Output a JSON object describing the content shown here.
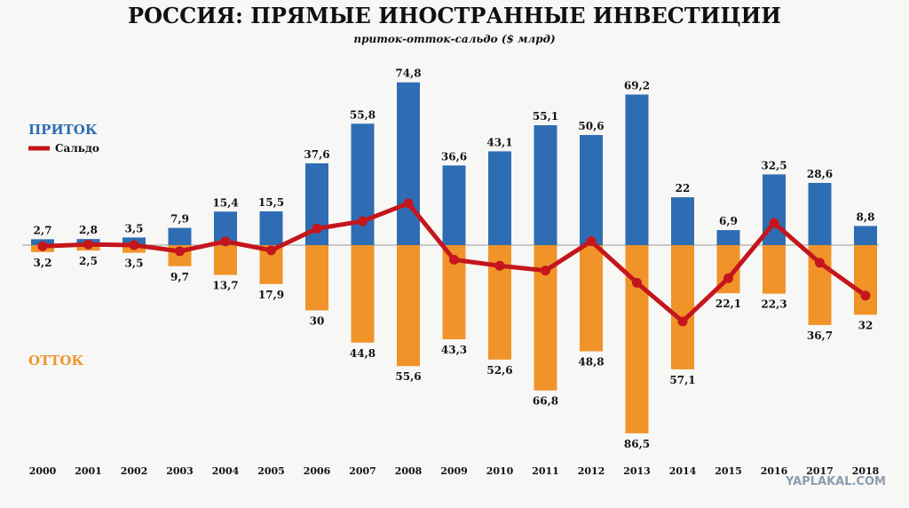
{
  "chart_data": {
    "type": "bar",
    "title": "РОССИЯ: ПРЯМЫЕ ИНОСТРАННЫЕ ИНВЕСТИЦИИ",
    "subtitle": "приток-отток-сальдо ($ млрд)",
    "categories": [
      "2000",
      "2001",
      "2002",
      "2003",
      "2004",
      "2005",
      "2006",
      "2007",
      "2008",
      "2009",
      "2010",
      "2011",
      "2012",
      "2013",
      "2014",
      "2015",
      "2016",
      "2017",
      "2018"
    ],
    "series": [
      {
        "name": "ПРИТОК",
        "color": "#2e6db3",
        "values": [
          2.7,
          2.8,
          3.5,
          7.9,
          15.4,
          15.5,
          37.6,
          55.8,
          74.8,
          36.6,
          43.1,
          55.1,
          50.6,
          69.2,
          22,
          6.9,
          32.5,
          28.6,
          8.8
        ],
        "labels": [
          "2,7",
          "2,8",
          "3,5",
          "7,9",
          "15,4",
          "15,5",
          "37,6",
          "55,8",
          "74,8",
          "36,6",
          "43,1",
          "55,1",
          "50,6",
          "69,2",
          "22",
          "6,9",
          "32,5",
          "28,6",
          "8,8"
        ]
      },
      {
        "name": "ОТТОК",
        "color": "#f0942a",
        "values": [
          3.2,
          2.5,
          3.5,
          9.7,
          13.7,
          17.9,
          30,
          44.8,
          55.6,
          43.3,
          52.6,
          66.8,
          48.8,
          86.5,
          57.1,
          22.1,
          22.3,
          36.7,
          32
        ],
        "labels": [
          "3,2",
          "2,5",
          "3,5",
          "9,7",
          "13,7",
          "17,9",
          "30",
          "44,8",
          "55,6",
          "43,3",
          "52,6",
          "66,8",
          "48,8",
          "86,5",
          "57,1",
          "22,1",
          "22,3",
          "36,7",
          "32"
        ]
      },
      {
        "name": "Сальдо",
        "color": "#c4161c",
        "type": "line",
        "values": [
          -0.5,
          0.3,
          0,
          -2.8,
          1.7,
          -2.4,
          7.6,
          11,
          19.2,
          -6.7,
          -9.5,
          -11.7,
          1.8,
          -17.3,
          -35.1,
          -15.2,
          10.2,
          -8.1,
          -23.2
        ]
      }
    ],
    "ylim": [
      -95,
      80
    ],
    "legend": {
      "inflow_label": "ПРИТОК",
      "outflow_label": "ОТТОК",
      "balance_label": "Сальдо"
    },
    "watermark": "YAPLAKAL.COM"
  }
}
